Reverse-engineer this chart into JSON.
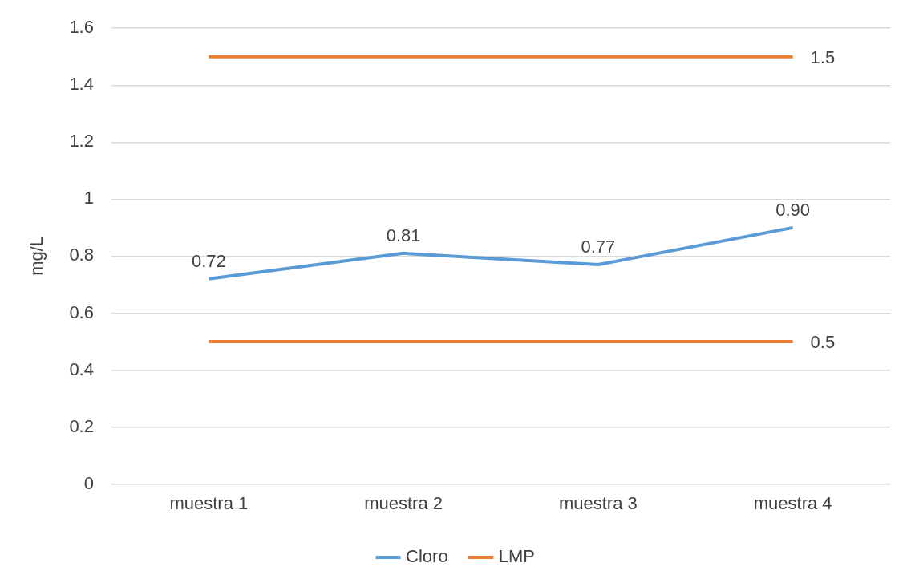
{
  "chart_data": {
    "type": "line",
    "ylabel": "mg/L",
    "categories": [
      "muestra 1",
      "muestra 2",
      "muestra 3",
      "muestra 4"
    ],
    "series": [
      {
        "name": "Cloro",
        "color": "#5b9bd5",
        "values": [
          0.72,
          0.81,
          0.77,
          0.9
        ],
        "value_labels": [
          "0.72",
          "0.81",
          "0.77",
          "0.90"
        ]
      },
      {
        "name": "LMP",
        "color": "#ed7d31",
        "values": [
          1.5,
          1.5,
          1.5,
          1.5
        ],
        "value_labels": [
          null,
          null,
          null,
          "1.5"
        ]
      },
      {
        "color": "#ed7d31",
        "values": [
          0.5,
          0.5,
          0.5,
          0.5
        ],
        "value_labels": [
          null,
          null,
          null,
          "0.5"
        ]
      }
    ],
    "ylim": [
      0,
      1.6
    ],
    "yticks": [
      0,
      0.2,
      0.4,
      0.6,
      0.8,
      1,
      1.2,
      1.4,
      1.6
    ],
    "grid": "y",
    "legend": "bottom",
    "marker": "none",
    "line_style": "solid"
  }
}
